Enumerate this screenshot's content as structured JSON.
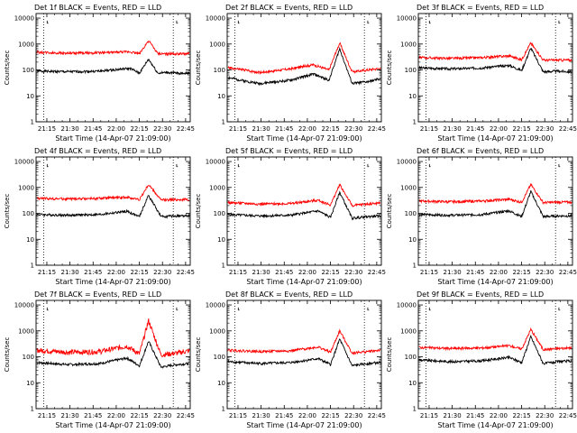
{
  "figure": {
    "xlabel": "Start Time (14-Apr-07 21:09:00)",
    "ylabel": "Counts/sec",
    "x_tick_labels": [
      "21:15",
      "21:30",
      "21:45",
      "22:00",
      "22:15",
      "22:30",
      "22:45"
    ],
    "y_tick_labels": [
      "1",
      "10",
      "100",
      "1000",
      "10000"
    ],
    "series_colors": {
      "events": "#000000",
      "lld": "#ff0000"
    },
    "corner_glyphs": [
      "⸤",
      "⸤"
    ]
  },
  "chart_data": [
    {
      "type": "line",
      "title": "Det 1f BLACK = Events, RED = LLD",
      "detector": "1f",
      "x_range_minutes_after_2109": [
        -1,
        99
      ],
      "ylim": [
        1,
        15000
      ],
      "yscale": "log",
      "dotted_vlines": [
        "21:13",
        "22:37"
      ],
      "x_minutes_after_2109": [
        0,
        20,
        40,
        60,
        66,
        72,
        78,
        84,
        90,
        98
      ],
      "series": [
        {
          "name": "Events",
          "color": "#000000",
          "values": [
            90,
            85,
            90,
            115,
            75,
            260,
            75,
            80,
            75,
            75
          ]
        },
        {
          "name": "LLD",
          "color": "#ff0000",
          "values": [
            480,
            440,
            460,
            500,
            420,
            1350,
            420,
            420,
            420,
            420
          ]
        }
      ]
    },
    {
      "type": "line",
      "title": "Det 2f BLACK = Events, RED = LLD",
      "detector": "2f",
      "x_range_minutes_after_2109": [
        -1,
        99
      ],
      "ylim": [
        1,
        15000
      ],
      "yscale": "log",
      "dotted_vlines": [
        "21:13",
        "22:37"
      ],
      "x_minutes_after_2109": [
        0,
        10,
        20,
        40,
        55,
        65,
        72,
        80,
        90,
        98
      ],
      "series": [
        {
          "name": "Events",
          "color": "#000000",
          "values": [
            50,
            38,
            30,
            40,
            70,
            40,
            650,
            30,
            35,
            45
          ]
        },
        {
          "name": "LLD",
          "color": "#ff0000",
          "values": [
            120,
            100,
            80,
            110,
            160,
            100,
            1100,
            85,
            100,
            115
          ]
        }
      ]
    },
    {
      "type": "line",
      "title": "Det 3f BLACK = Events, RED = LLD",
      "detector": "3f",
      "x_range_minutes_after_2109": [
        -1,
        99
      ],
      "ylim": [
        1,
        15000
      ],
      "yscale": "log",
      "dotted_vlines": [
        "21:13",
        "22:37"
      ],
      "x_minutes_after_2109": [
        0,
        20,
        40,
        58,
        66,
        72,
        80,
        90,
        98
      ],
      "series": [
        {
          "name": "Events",
          "color": "#000000",
          "values": [
            120,
            110,
            120,
            150,
            95,
            700,
            85,
            90,
            85
          ]
        },
        {
          "name": "LLD",
          "color": "#ff0000",
          "values": [
            300,
            280,
            300,
            350,
            250,
            1100,
            240,
            240,
            240
          ]
        }
      ]
    },
    {
      "type": "line",
      "title": "Det 4f BLACK = Events, RED = LLD",
      "detector": "4f",
      "x_range_minutes_after_2109": [
        -1,
        99
      ],
      "ylim": [
        1,
        15000
      ],
      "yscale": "log",
      "dotted_vlines": [
        "21:13",
        "22:37"
      ],
      "x_minutes_after_2109": [
        0,
        20,
        40,
        58,
        66,
        72,
        80,
        90,
        98
      ],
      "series": [
        {
          "name": "Events",
          "color": "#000000",
          "values": [
            90,
            85,
            90,
            120,
            75,
            500,
            75,
            80,
            80
          ]
        },
        {
          "name": "LLD",
          "color": "#ff0000",
          "values": [
            380,
            360,
            380,
            420,
            340,
            1300,
            330,
            340,
            340
          ]
        }
      ]
    },
    {
      "type": "line",
      "title": "Det 5f BLACK = Events, RED = LLD",
      "detector": "5f",
      "x_range_minutes_after_2109": [
        -1,
        99
      ],
      "ylim": [
        1,
        15000
      ],
      "yscale": "log",
      "dotted_vlines": [
        "21:13",
        "22:37"
      ],
      "x_minutes_after_2109": [
        0,
        20,
        40,
        58,
        66,
        72,
        80,
        90,
        98
      ],
      "series": [
        {
          "name": "Events",
          "color": "#000000",
          "values": [
            90,
            80,
            85,
            125,
            70,
            650,
            65,
            75,
            80
          ]
        },
        {
          "name": "LLD",
          "color": "#ff0000",
          "values": [
            260,
            230,
            240,
            320,
            210,
            1300,
            200,
            230,
            250
          ]
        }
      ]
    },
    {
      "type": "line",
      "title": "Det 6f BLACK = Events, RED = LLD",
      "detector": "6f",
      "x_range_minutes_after_2109": [
        -1,
        99
      ],
      "ylim": [
        1,
        15000
      ],
      "yscale": "log",
      "dotted_vlines": [
        "21:13",
        "22:37"
      ],
      "x_minutes_after_2109": [
        0,
        20,
        40,
        58,
        66,
        72,
        80,
        90,
        98
      ],
      "series": [
        {
          "name": "Events",
          "color": "#000000",
          "values": [
            90,
            85,
            90,
            125,
            75,
            700,
            75,
            80,
            80
          ]
        },
        {
          "name": "LLD",
          "color": "#ff0000",
          "values": [
            300,
            280,
            300,
            350,
            270,
            1300,
            260,
            270,
            270
          ]
        }
      ]
    },
    {
      "type": "line",
      "title": "Det 7f BLACK = Events, RED = LLD",
      "detector": "7f",
      "x_range_minutes_after_2109": [
        -1,
        99
      ],
      "ylim": [
        1,
        15000
      ],
      "yscale": "log",
      "dotted_vlines": [
        "21:13",
        "22:37"
      ],
      "x_minutes_after_2109": [
        0,
        20,
        40,
        58,
        66,
        72,
        80,
        90,
        98
      ],
      "series": [
        {
          "name": "Events",
          "color": "#000000",
          "values": [
            60,
            50,
            55,
            90,
            45,
            400,
            40,
            50,
            55
          ]
        },
        {
          "name": "LLD",
          "color": "#ff0000",
          "values": [
            180,
            150,
            160,
            260,
            130,
            2500,
            120,
            140,
            170
          ]
        }
      ]
    },
    {
      "type": "line",
      "title": "Det 8f BLACK = Events, RED = LLD",
      "detector": "8f",
      "x_range_minutes_after_2109": [
        -1,
        99
      ],
      "ylim": [
        1,
        15000
      ],
      "yscale": "log",
      "dotted_vlines": [
        "21:13",
        "22:37"
      ],
      "x_minutes_after_2109": [
        0,
        20,
        40,
        58,
        66,
        72,
        80,
        90,
        98
      ],
      "series": [
        {
          "name": "Events",
          "color": "#000000",
          "values": [
            65,
            55,
            60,
            85,
            50,
            480,
            45,
            55,
            60
          ]
        },
        {
          "name": "LLD",
          "color": "#ff0000",
          "values": [
            180,
            160,
            170,
            240,
            150,
            1000,
            140,
            160,
            180
          ]
        }
      ]
    },
    {
      "type": "line",
      "title": "Det 9f BLACK = Events, RED = LLD",
      "detector": "9f",
      "x_range_minutes_after_2109": [
        -1,
        99
      ],
      "ylim": [
        1,
        15000
      ],
      "yscale": "log",
      "dotted_vlines": [
        "21:13",
        "22:37"
      ],
      "x_minutes_after_2109": [
        0,
        20,
        40,
        58,
        66,
        72,
        80,
        90,
        98
      ],
      "series": [
        {
          "name": "Events",
          "color": "#000000",
          "values": [
            75,
            65,
            70,
            95,
            60,
            600,
            55,
            65,
            70
          ]
        },
        {
          "name": "LLD",
          "color": "#ff0000",
          "values": [
            230,
            210,
            220,
            270,
            200,
            1150,
            190,
            210,
            220
          ]
        }
      ]
    }
  ]
}
